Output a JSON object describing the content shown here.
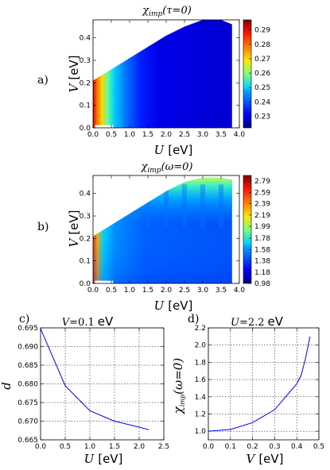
{
  "chart_data": [
    {
      "type": "heatmap",
      "panel_label": "a)",
      "title": "χimp(τ=0)",
      "title_main": "χ",
      "title_sub": "imp",
      "title_arg": "(τ=0)",
      "xlabel_var": "U",
      "xlabel_unit": "[eV]",
      "ylabel_var": "V",
      "ylabel_unit": "[eV]",
      "xlim": [
        0.0,
        4.0
      ],
      "ylim": [
        0.0,
        0.48
      ],
      "xticks": [
        "0.0",
        "0.5",
        "1.0",
        "1.5",
        "2.0",
        "2.5",
        "3.0",
        "3.5",
        "4.0"
      ],
      "yticks": [
        "0.0",
        "0.1",
        "0.2",
        "0.3",
        "0.4"
      ],
      "colorbar_ticks": [
        "0.29",
        "0.28",
        "0.27",
        "0.26",
        "0.25",
        "0.24",
        "0.23"
      ],
      "colorbar_range": [
        0.222,
        0.297
      ],
      "valid_boundary": {
        "U": [
          0.0,
          0.5,
          1.0,
          1.5,
          2.0,
          2.5,
          3.0,
          3.5,
          3.8
        ],
        "Vmax": [
          0.21,
          0.26,
          0.31,
          0.36,
          0.41,
          0.45,
          0.48,
          0.48,
          0.46
        ]
      },
      "grid": false
    },
    {
      "type": "heatmap",
      "panel_label": "b)",
      "title": "χimp(ω=0)",
      "title_main": "χ",
      "title_sub": "imp",
      "title_arg": "(ω=0)",
      "xlabel_var": "U",
      "xlabel_unit": "[eV]",
      "ylabel_var": "V",
      "ylabel_unit": "[eV]",
      "xlim": [
        0.0,
        4.0
      ],
      "ylim": [
        0.0,
        0.48
      ],
      "xticks": [
        "0.0",
        "0.5",
        "1.0",
        "1.5",
        "2.0",
        "2.5",
        "3.0",
        "3.5",
        "4.0"
      ],
      "yticks": [
        "0.0",
        "0.1",
        "0.2",
        "0.3",
        "0.4"
      ],
      "colorbar_ticks": [
        "2.79",
        "2.59",
        "2.39",
        "2.19",
        "1.99",
        "1.78",
        "1.58",
        "1.38",
        "1.18",
        "0.98"
      ],
      "colorbar_range": [
        0.98,
        2.89
      ],
      "valid_boundary": {
        "U": [
          0.0,
          0.5,
          1.0,
          1.5,
          2.0,
          2.5,
          3.0,
          3.5,
          3.8
        ],
        "Vmax": [
          0.21,
          0.26,
          0.31,
          0.36,
          0.41,
          0.45,
          0.47,
          0.47,
          0.46
        ]
      },
      "grid": false
    },
    {
      "type": "line",
      "panel_label": "c)",
      "title": "V=0.1 eV",
      "title_var": "V",
      "title_eq": "=0.1",
      "title_unit": "eV",
      "xlabel_var": "U",
      "xlabel_unit": "[eV]",
      "ylabel": "d",
      "x": [
        0.0,
        0.5,
        1.0,
        1.5,
        2.0,
        2.2
      ],
      "y": [
        0.6948,
        0.6795,
        0.6728,
        0.67,
        0.6684,
        0.6677
      ],
      "xlim": [
        0.0,
        2.5
      ],
      "ylim": [
        0.665,
        0.695
      ],
      "xticks": [
        "0.0",
        "0.5",
        "1.0",
        "1.5",
        "2.0",
        "2.5"
      ],
      "yticks": [
        "0.665",
        "0.670",
        "0.675",
        "0.680",
        "0.685",
        "0.690",
        "0.695"
      ],
      "grid": true,
      "color": "#0000ff"
    },
    {
      "type": "line",
      "panel_label": "d)",
      "title": "U=2.2 eV",
      "title_var": "U",
      "title_eq": "=2.2",
      "title_unit": "eV",
      "xlabel_var": "V",
      "xlabel_unit": "[eV]",
      "ylabel": "χimp(ω=0)",
      "ylabel_main": "χ",
      "ylabel_sub": "imp",
      "ylabel_arg": "(ω=0)",
      "x": [
        0.0,
        0.1,
        0.2,
        0.3,
        0.4,
        0.42,
        0.44,
        0.46
      ],
      "y": [
        1.0,
        1.02,
        1.1,
        1.25,
        1.55,
        1.65,
        1.85,
        2.1
      ],
      "xlim": [
        0.0,
        0.5
      ],
      "ylim": [
        0.9,
        2.2
      ],
      "xticks": [
        "0.0",
        "0.1",
        "0.2",
        "0.3",
        "0.4",
        "0.5"
      ],
      "yticks": [
        "1.0",
        "1.2",
        "1.4",
        "1.6",
        "1.8",
        "2.0",
        "2.2"
      ],
      "grid": true,
      "color": "#0000ff"
    }
  ]
}
